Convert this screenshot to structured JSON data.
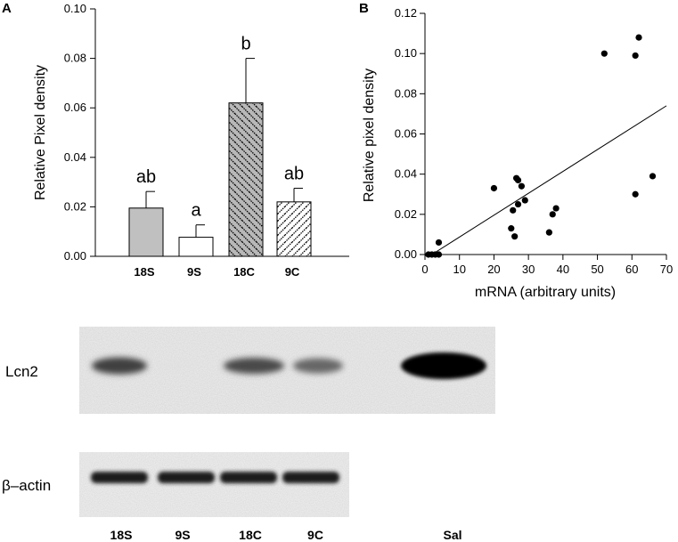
{
  "chart_data": [
    {
      "panel": "A",
      "type": "bar",
      "ylabel": "Relative Pixel density",
      "categories": [
        "18S",
        "9S",
        "18C",
        "9C"
      ],
      "values": [
        0.0195,
        0.0077,
        0.062,
        0.022
      ],
      "errors": [
        0.0067,
        0.005,
        0.018,
        0.0055
      ],
      "significance": [
        "ab",
        "a",
        "b",
        "ab"
      ],
      "fills": [
        "#c0c0c0",
        "#ffffff",
        "hatch-gray",
        "hatch-white"
      ],
      "ylim": [
        0,
        0.1
      ],
      "yticks": [
        "0.00",
        "0.02",
        "0.04",
        "0.06",
        "0.08",
        "0.10"
      ]
    },
    {
      "panel": "B",
      "type": "scatter",
      "xlabel": "mRNA (arbitrary units)",
      "ylabel": "Relative pixel density",
      "xlim": [
        0,
        70
      ],
      "ylim": [
        0,
        0.12
      ],
      "xticks": [
        "0",
        "10",
        "20",
        "30",
        "40",
        "50",
        "60",
        "70"
      ],
      "yticks": [
        "0.00",
        "0.02",
        "0.04",
        "0.06",
        "0.08",
        "0.10",
        "0.12"
      ],
      "points": [
        {
          "x": 1,
          "y": 0.0
        },
        {
          "x": 2,
          "y": 0.0
        },
        {
          "x": 3,
          "y": 0.0
        },
        {
          "x": 4,
          "y": 0.0
        },
        {
          "x": 4,
          "y": 0.006
        },
        {
          "x": 20,
          "y": 0.033
        },
        {
          "x": 25,
          "y": 0.013
        },
        {
          "x": 25.5,
          "y": 0.022
        },
        {
          "x": 26,
          "y": 0.009
        },
        {
          "x": 26.5,
          "y": 0.038
        },
        {
          "x": 27,
          "y": 0.037
        },
        {
          "x": 27,
          "y": 0.025
        },
        {
          "x": 28,
          "y": 0.034
        },
        {
          "x": 29,
          "y": 0.027
        },
        {
          "x": 36,
          "y": 0.011
        },
        {
          "x": 37,
          "y": 0.02
        },
        {
          "x": 38,
          "y": 0.023
        },
        {
          "x": 52,
          "y": 0.1
        },
        {
          "x": 61,
          "y": 0.099
        },
        {
          "x": 61,
          "y": 0.03
        },
        {
          "x": 62,
          "y": 0.108
        },
        {
          "x": 66,
          "y": 0.039
        }
      ],
      "trendline": {
        "x": [
          2,
          70
        ],
        "y": [
          0.0,
          0.074
        ]
      }
    }
  ],
  "panels": {
    "a": "A",
    "b": "B"
  },
  "blots": [
    {
      "label": "Lcn2",
      "bands": [
        0.75,
        0.05,
        0.7,
        0.6,
        1.0
      ]
    },
    {
      "label": "β–actin",
      "bands": [
        0.9,
        0.9,
        0.9,
        0.9
      ]
    }
  ],
  "lane_labels": [
    "18S",
    "9S",
    "18C",
    "9C",
    "Sal"
  ]
}
